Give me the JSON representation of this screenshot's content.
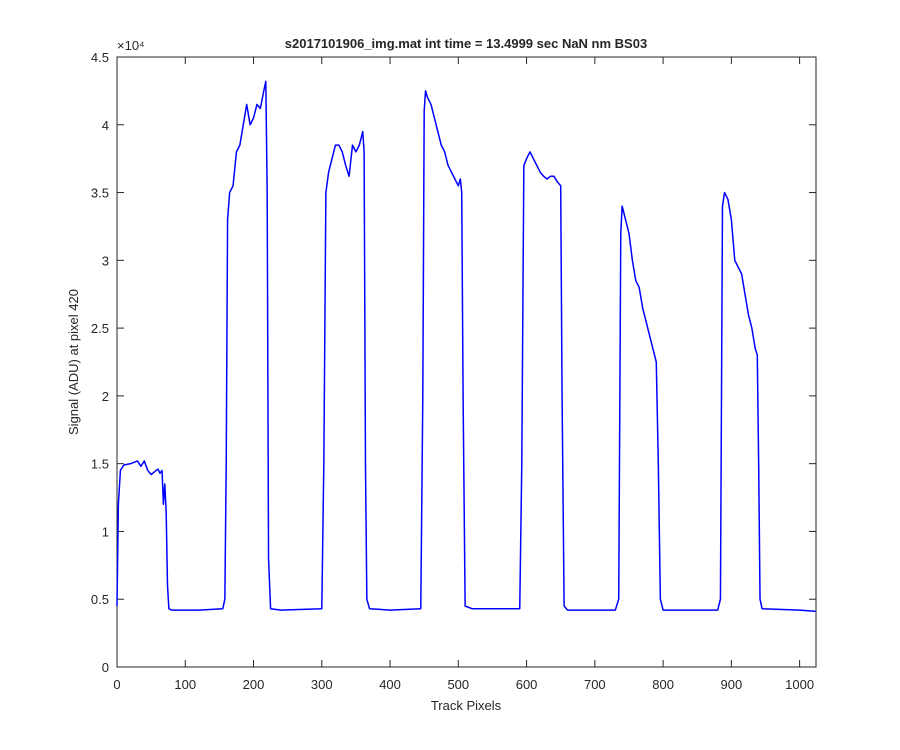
{
  "chart_data": {
    "type": "line",
    "title": "s2017101906_img.mat int time = 13.4999 sec  NaN nm BS03",
    "x_label": "Track Pixels",
    "y_label": "Signal (ADU) at pixel 420",
    "y_exponent": "×10⁴",
    "xlim": [
      0,
      1024
    ],
    "ylim": [
      0,
      4.5
    ],
    "xticks": [
      0,
      100,
      200,
      300,
      400,
      500,
      600,
      700,
      800,
      900,
      1000
    ],
    "yticks": [
      0,
      0.5,
      1,
      1.5,
      2,
      2.5,
      3,
      3.5,
      4,
      4.5
    ],
    "grid": false,
    "x": [
      0,
      2,
      5,
      10,
      20,
      30,
      35,
      40,
      45,
      50,
      55,
      60,
      63,
      66,
      68,
      70,
      72,
      74,
      76,
      80,
      120,
      155,
      158,
      160,
      162,
      165,
      170,
      175,
      180,
      185,
      190,
      195,
      200,
      205,
      210,
      215,
      218,
      220,
      222,
      225,
      240,
      300,
      303,
      306,
      310,
      315,
      320,
      325,
      330,
      335,
      340,
      345,
      350,
      355,
      360,
      362,
      364,
      366,
      370,
      400,
      445,
      448,
      450,
      452,
      455,
      460,
      465,
      470,
      475,
      480,
      485,
      490,
      495,
      500,
      503,
      505,
      507,
      510,
      520,
      590,
      593,
      596,
      600,
      605,
      610,
      615,
      620,
      625,
      630,
      635,
      640,
      645,
      650,
      652,
      655,
      660,
      730,
      735,
      738,
      740,
      745,
      750,
      755,
      760,
      765,
      770,
      775,
      780,
      785,
      790,
      793,
      796,
      800,
      880,
      884,
      887,
      890,
      895,
      900,
      905,
      910,
      915,
      920,
      925,
      930,
      935,
      938,
      940,
      942,
      945,
      1000,
      1024
    ],
    "series": [
      {
        "name": "signal",
        "color": "#0000ff",
        "values": [
          0.45,
          1.2,
          1.45,
          1.49,
          1.5,
          1.52,
          1.48,
          1.52,
          1.45,
          1.42,
          1.44,
          1.46,
          1.43,
          1.45,
          1.2,
          1.35,
          1.15,
          0.6,
          0.43,
          0.42,
          0.42,
          0.43,
          0.5,
          1.5,
          3.3,
          3.5,
          3.55,
          3.8,
          3.85,
          4.0,
          4.15,
          4.0,
          4.05,
          4.15,
          4.12,
          4.25,
          4.32,
          3.5,
          0.8,
          0.43,
          0.42,
          0.43,
          1.5,
          3.5,
          3.65,
          3.75,
          3.85,
          3.85,
          3.8,
          3.7,
          3.62,
          3.85,
          3.8,
          3.85,
          3.95,
          3.8,
          1.5,
          0.5,
          0.43,
          0.42,
          0.43,
          2.0,
          4.1,
          4.25,
          4.2,
          4.15,
          4.05,
          3.95,
          3.85,
          3.8,
          3.7,
          3.65,
          3.6,
          3.55,
          3.6,
          3.5,
          2.0,
          0.45,
          0.43,
          0.43,
          1.5,
          3.7,
          3.75,
          3.8,
          3.75,
          3.7,
          3.65,
          3.62,
          3.6,
          3.62,
          3.62,
          3.58,
          3.55,
          2.0,
          0.45,
          0.42,
          0.42,
          0.5,
          3.2,
          3.4,
          3.3,
          3.2,
          3.0,
          2.85,
          2.8,
          2.65,
          2.55,
          2.45,
          2.35,
          2.25,
          1.5,
          0.5,
          0.42,
          0.42,
          0.5,
          3.4,
          3.5,
          3.45,
          3.3,
          3.0,
          2.95,
          2.9,
          2.75,
          2.6,
          2.5,
          2.35,
          2.3,
          1.5,
          0.5,
          0.43,
          0.42,
          0.41
        ]
      }
    ]
  }
}
